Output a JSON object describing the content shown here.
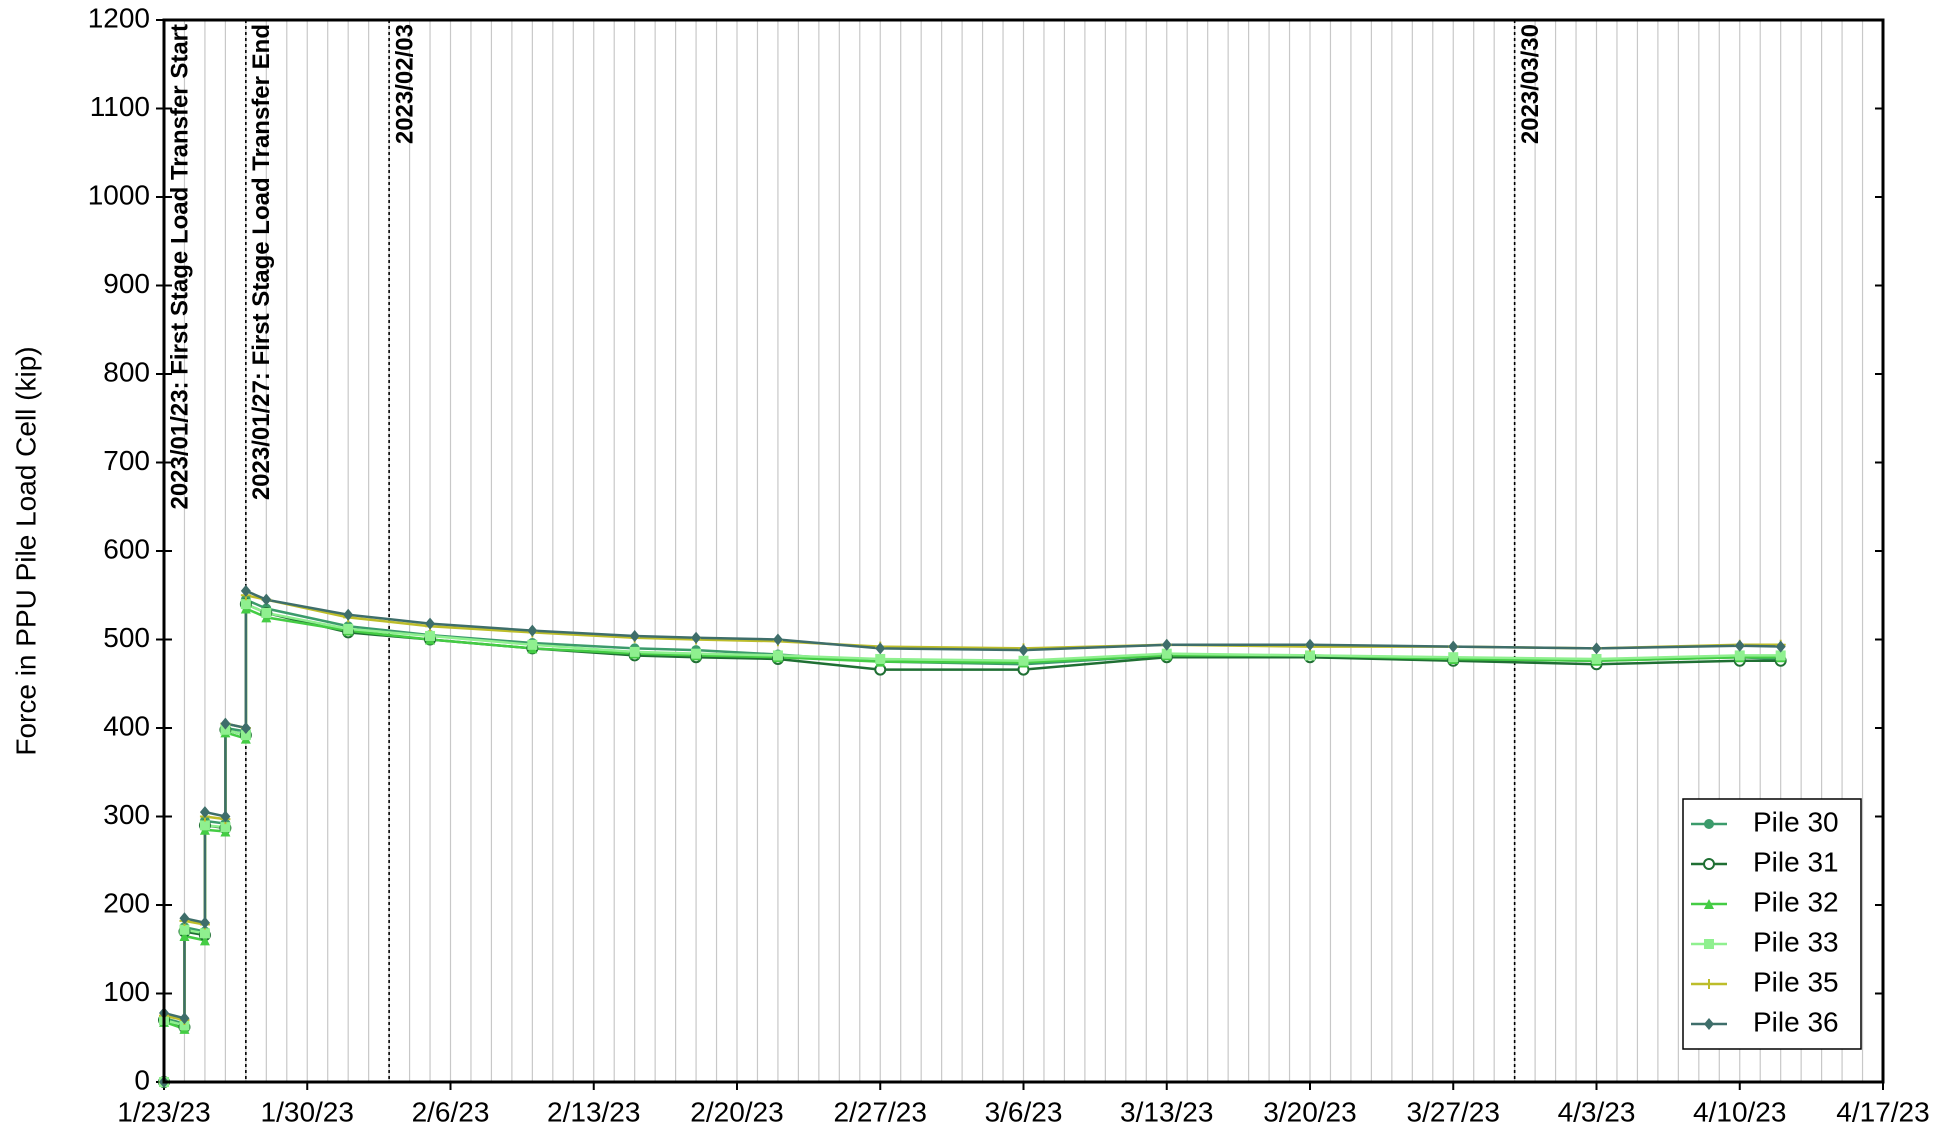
{
  "chart_data": {
    "type": "line",
    "y_label": "Force in PPU Pile Load Cell (kip)",
    "x": [
      "2023-01-23",
      "2023-01-23",
      "2023-01-24",
      "2023-01-24",
      "2023-01-25",
      "2023-01-25",
      "2023-01-26",
      "2023-01-26",
      "2023-01-27",
      "2023-01-27",
      "2023-01-28",
      "2023-02-01",
      "2023-02-05",
      "2023-02-10",
      "2023-02-15",
      "2023-02-18",
      "2023-02-22",
      "2023-02-27",
      "2023-03-06",
      "2023-03-13",
      "2023-03-20",
      "2023-03-27",
      "2023-04-03",
      "2023-04-10",
      "2023-04-12"
    ],
    "series": [
      {
        "name": "Pile 30",
        "color": "#3b9b6b",
        "marker": "circle",
        "values": [
          0,
          72,
          66,
          175,
          170,
          295,
          292,
          400,
          396,
          545,
          535,
          515,
          505,
          496,
          490,
          488,
          483,
          475,
          472,
          482,
          480,
          478,
          476,
          480,
          478
        ]
      },
      {
        "name": "Pile 31",
        "color": "#1f6f33",
        "marker": "open-circle",
        "values": [
          0,
          70,
          62,
          170,
          166,
          290,
          287,
          398,
          392,
          540,
          530,
          508,
          500,
          490,
          482,
          480,
          478,
          466,
          466,
          480,
          480,
          476,
          472,
          476,
          476
        ]
      },
      {
        "name": "Pile 32",
        "color": "#44cc44",
        "marker": "triangle",
        "values": [
          0,
          68,
          60,
          165,
          160,
          285,
          283,
          395,
          388,
          535,
          525,
          510,
          500,
          490,
          484,
          482,
          480,
          475,
          474,
          482,
          482,
          478,
          476,
          480,
          480
        ]
      },
      {
        "name": "Pile 33",
        "color": "#8ff08f",
        "marker": "square",
        "values": [
          0,
          70,
          64,
          172,
          168,
          290,
          288,
          398,
          392,
          540,
          530,
          512,
          504,
          494,
          486,
          484,
          482,
          478,
          476,
          484,
          482,
          480,
          478,
          482,
          482
        ]
      },
      {
        "name": "Pile 35",
        "color": "#bdbd2a",
        "marker": "plus",
        "values": [
          0,
          75,
          70,
          182,
          178,
          300,
          297,
          405,
          400,
          550,
          545,
          525,
          515,
          508,
          502,
          500,
          498,
          492,
          490,
          494,
          492,
          492,
          490,
          494,
          494
        ]
      },
      {
        "name": "Pile 36",
        "color": "#3e6e6a",
        "marker": "diamond",
        "values": [
          0,
          78,
          72,
          185,
          180,
          305,
          300,
          405,
          400,
          555,
          545,
          528,
          518,
          510,
          504,
          502,
          500,
          490,
          488,
          494,
          494,
          492,
          490,
          493,
          492
        ]
      }
    ],
    "xlim": [
      "2023-01-23",
      "2023-04-17"
    ],
    "xticks": [
      {
        "value": "2023-01-23",
        "label": "1/23/23"
      },
      {
        "value": "2023-01-30",
        "label": "1/30/23"
      },
      {
        "value": "2023-02-06",
        "label": "2/6/23"
      },
      {
        "value": "2023-02-13",
        "label": "2/13/23"
      },
      {
        "value": "2023-02-20",
        "label": "2/20/23"
      },
      {
        "value": "2023-02-27",
        "label": "2/27/23"
      },
      {
        "value": "2023-03-06",
        "label": "3/6/23"
      },
      {
        "value": "2023-03-13",
        "label": "3/13/23"
      },
      {
        "value": "2023-03-20",
        "label": "3/20/23"
      },
      {
        "value": "2023-03-27",
        "label": "3/27/23"
      },
      {
        "value": "2023-04-03",
        "label": "4/3/23"
      },
      {
        "value": "2023-04-10",
        "label": "4/10/23"
      },
      {
        "value": "2023-04-17",
        "label": "4/17/23"
      }
    ],
    "ylim": [
      0,
      1200
    ],
    "yticks": [
      0,
      100,
      200,
      300,
      400,
      500,
      600,
      700,
      800,
      900,
      1000,
      1100,
      1200
    ],
    "minor_grid_step_days": 1,
    "legend": "lower right",
    "annotations": [
      {
        "x": "2023-01-23",
        "label": "2023/01/23: First Stage Load Transfer Start",
        "style": "solid"
      },
      {
        "x": "2023-01-27",
        "label": "2023/01/27: First Stage Load Transfer End",
        "style": "dotted"
      },
      {
        "x": "2023-02-03",
        "label": "2023/02/03",
        "style": "dotted"
      },
      {
        "x": "2023-03-30",
        "label": "2023/03/30",
        "style": "dotted"
      }
    ]
  }
}
